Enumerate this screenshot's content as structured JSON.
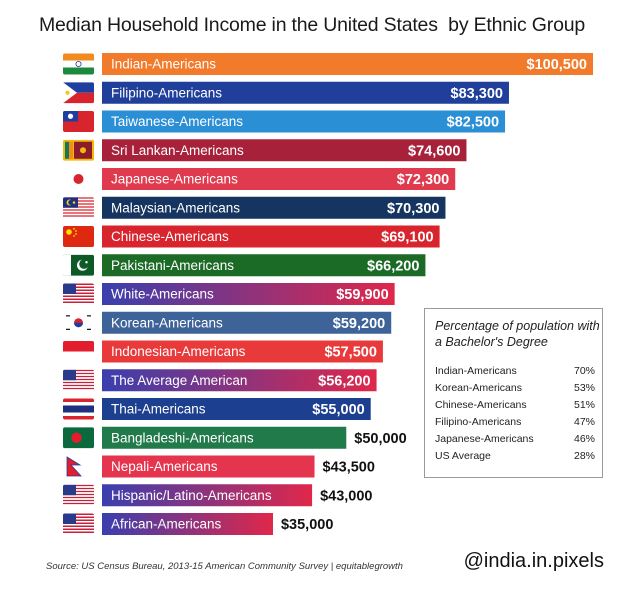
{
  "title": "Median Household Income in the United States  by Ethnic Group",
  "chart_data": {
    "type": "bar",
    "orientation": "horizontal",
    "title": "Median Household Income in the United States  by Ethnic Group",
    "xlabel": "",
    "ylabel": "",
    "xlim": [
      0,
      100500
    ],
    "series": [
      {
        "name": "Median Household Income",
        "categories": [
          "Indian-Americans",
          "Filipino-Americans",
          "Taiwanese-Americans",
          "Sri Lankan-Americans",
          "Japanese-Americans",
          "Malaysian-Americans",
          "Chinese-Americans",
          "Pakistani-Americans",
          "White-Americans",
          "Korean-Americans",
          "Indonesian-Americans",
          "The Average American",
          "Thai-Americans",
          "Bangladeshi-Americans",
          "Nepali-Americans",
          "Hispanic/Latino-Americans",
          "African-Americans"
        ],
        "values": [
          100500,
          83300,
          82500,
          74600,
          72300,
          70300,
          69100,
          66200,
          59900,
          59200,
          57500,
          56200,
          55000,
          50000,
          43500,
          43000,
          35000
        ],
        "value_labels": [
          "$100,500",
          "$83,300",
          "$82,500",
          "$74,600",
          "$72,300",
          "$70,300",
          "$69,100",
          "$66,200",
          "$59,900",
          "$59,200",
          "$57,500",
          "$56,200",
          "$55,000",
          "$50,000",
          "$43,500",
          "$43,000",
          "$35,000"
        ]
      }
    ]
  },
  "bars": [
    {
      "flag": "india-flag",
      "color": "#f27a2b",
      "color2": "#f27a2b"
    },
    {
      "flag": "philippines-flag",
      "color": "#1f3f9a",
      "color2": "#1f3f9a"
    },
    {
      "flag": "taiwan-flag",
      "color": "#2b8fd6",
      "color2": "#2b8fd6"
    },
    {
      "flag": "sri-lanka-flag",
      "color": "#a8213a",
      "color2": "#a8213a"
    },
    {
      "flag": "japan-flag",
      "color": "#e03a4e",
      "color2": "#e03a4e"
    },
    {
      "flag": "malaysia-flag",
      "color": "#15345f",
      "color2": "#15345f"
    },
    {
      "flag": "china-flag",
      "color": "#d8242c",
      "color2": "#d8242c"
    },
    {
      "flag": "pakistan-flag",
      "color": "#1b6b26",
      "color2": "#1b6b26"
    },
    {
      "flag": "usa-flag",
      "color": "#3a3fae",
      "color2": "#e0274a"
    },
    {
      "flag": "south-korea-flag",
      "color": "#3e6399",
      "color2": "#3e6399"
    },
    {
      "flag": "indonesia-flag",
      "color": "#e83a3a",
      "color2": "#e83a3a"
    },
    {
      "flag": "usa-flag",
      "color": "#3a3fae",
      "color2": "#e0274a"
    },
    {
      "flag": "thailand-flag",
      "color": "#1d3f8f",
      "color2": "#1d3f8f"
    },
    {
      "flag": "bangladesh-flag",
      "color": "#217a4a",
      "color2": "#217a4a"
    },
    {
      "flag": "nepal-flag",
      "color": "#e4344e",
      "color2": "#e4344e"
    },
    {
      "flag": "usa-flag",
      "color": "#3a3fae",
      "color2": "#e0274a"
    },
    {
      "flag": "usa-flag",
      "color": "#3a3fae",
      "color2": "#e0274a"
    }
  ],
  "legend": {
    "title": "Percentage of population with a Bachelor's Degree",
    "rows": [
      {
        "name": "Indian-Americans",
        "value": "70%"
      },
      {
        "name": "Korean-Americans",
        "value": "53%"
      },
      {
        "name": "Chinese-Americans",
        "value": "51%"
      },
      {
        "name": "Filipino-Americans",
        "value": "47%"
      },
      {
        "name": "Japanese-Americans",
        "value": "46%"
      },
      {
        "name": "US Average",
        "value": "28%"
      }
    ]
  },
  "source": "Source: US Census Bureau, 2013-15 American Community Survey | equitablegrowth",
  "handle": "@india.in.pixels"
}
